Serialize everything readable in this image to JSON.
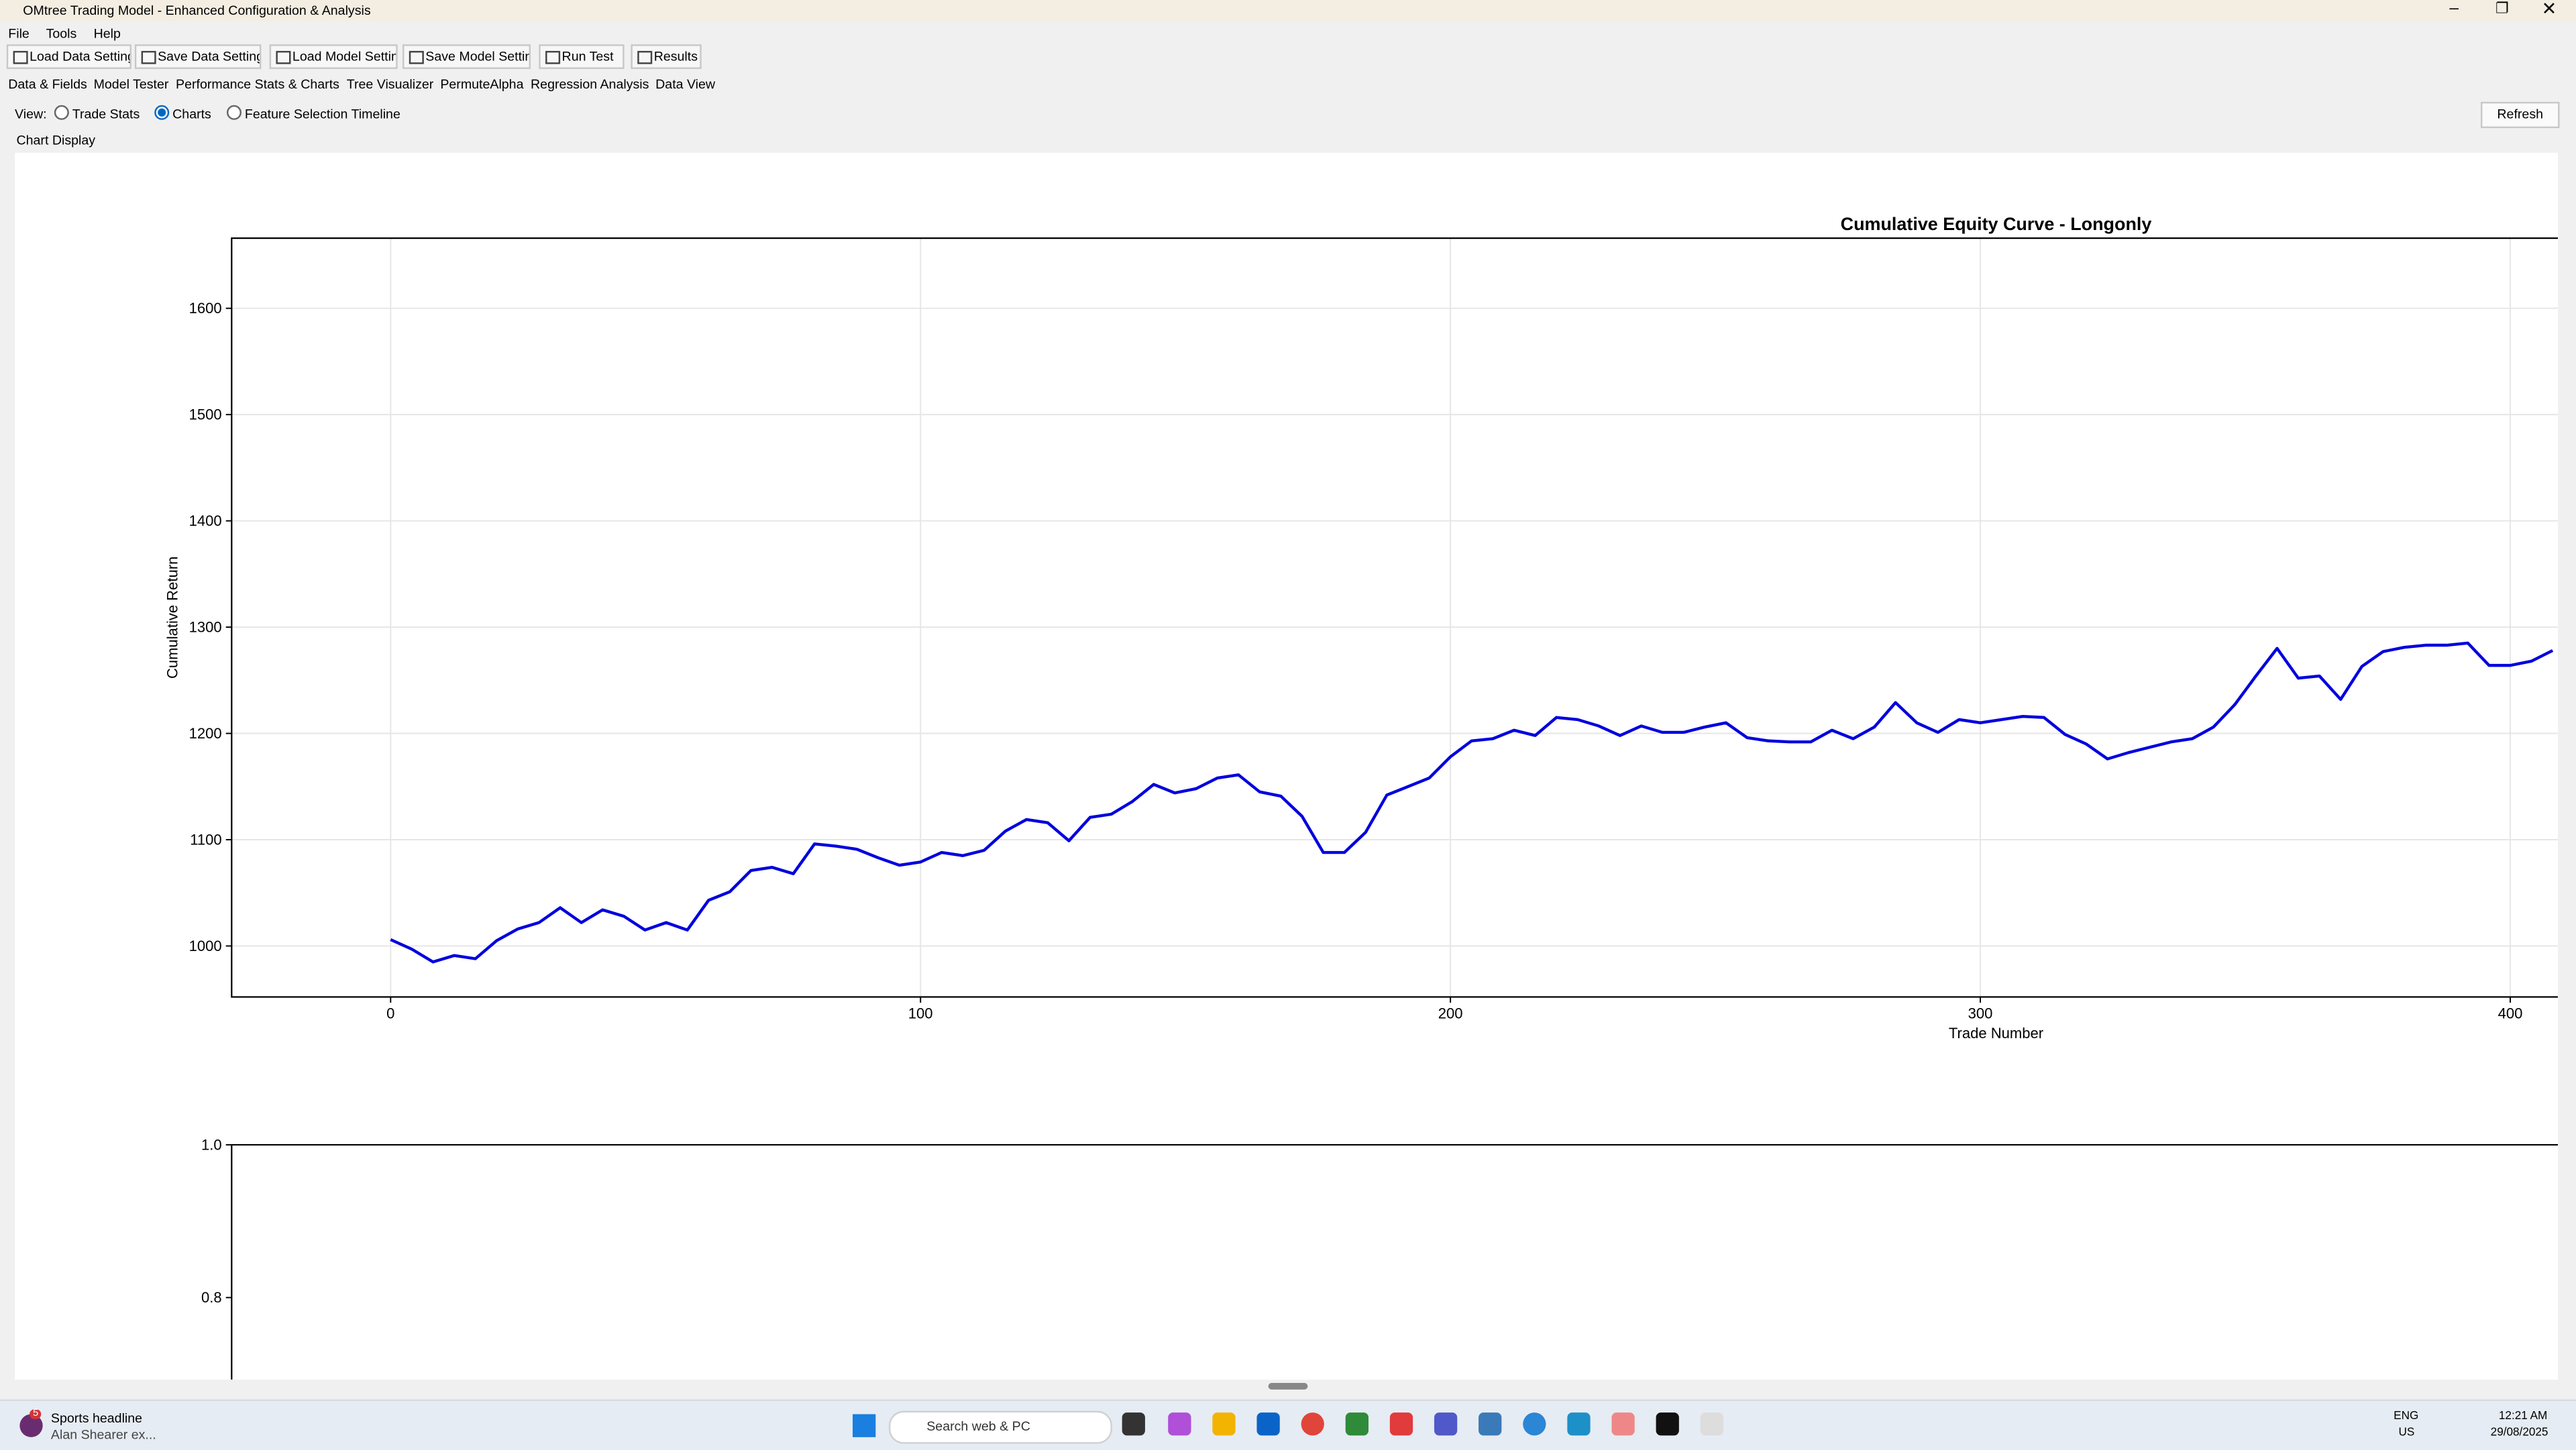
{
  "window": {
    "title": "OMtree Trading Model - Enhanced Configuration & Analysis"
  },
  "menu": [
    "File",
    "Tools",
    "Help"
  ],
  "toolbar": [
    "Load Data Settings",
    "Save Data Settings",
    "Load Model Settings",
    "Save Model Settings",
    "Run Test",
    "Results"
  ],
  "tabs": [
    "Data & Fields",
    "Model Tester",
    "Performance Stats & Charts",
    "Tree Visualizer",
    "PermuteAlpha",
    "Regression Analysis",
    "Data View"
  ],
  "view": {
    "label": "View:",
    "options": [
      "Trade Stats",
      "Charts",
      "Feature Selection Timeline"
    ],
    "selected": 1
  },
  "refresh": "Refresh",
  "panel_label": "Chart Display",
  "chart_data": [
    {
      "type": "line",
      "title": "Cumulative Equity Curve - Longonly",
      "xlabel": "Trade Number",
      "ylabel": "Cumulative Return",
      "x": [
        0,
        4,
        8,
        12,
        16,
        20,
        24,
        28,
        32,
        36,
        40,
        44,
        48,
        52,
        56,
        60,
        64,
        68,
        72,
        76,
        80,
        84,
        88,
        92,
        96,
        100,
        104,
        108,
        112,
        116,
        120,
        124,
        128,
        132,
        136,
        140,
        144,
        148,
        152,
        156,
        160,
        164,
        168,
        172,
        176,
        180,
        184,
        188,
        192,
        196,
        200,
        204,
        208,
        212,
        216,
        220,
        224,
        228,
        232,
        236,
        240,
        244,
        248,
        252,
        256,
        260,
        264,
        268,
        272,
        276,
        280,
        284,
        288,
        292,
        296,
        300,
        304,
        308,
        312,
        316,
        320,
        324,
        328,
        332,
        336,
        340,
        344,
        348,
        352,
        356,
        360,
        364,
        368,
        372,
        376,
        380,
        384,
        388,
        392,
        396,
        400,
        404,
        408
      ],
      "series": [
        {
          "color": "#0000dd",
          "values": [
            1006,
            997,
            985,
            991,
            988,
            1005,
            1016,
            1022,
            1036,
            1022,
            1034,
            1028,
            1015,
            1022,
            1015,
            1043,
            1051,
            1071,
            1074,
            1068,
            1096,
            1094,
            1091,
            1083,
            1076,
            1079,
            1088,
            1085,
            1090,
            1108,
            1119,
            1116,
            1099,
            1121,
            1124,
            1136,
            1152,
            1144,
            1148,
            1158,
            1161,
            1145,
            1141,
            1122,
            1088,
            1088,
            1107,
            1142,
            1150,
            1158,
            1178,
            1193,
            1195,
            1203,
            1198,
            1215,
            1213,
            1207,
            1198,
            1207,
            1201,
            1201,
            1206,
            1210,
            1196,
            1193,
            1192,
            1192,
            1203,
            1195,
            1206,
            1229,
            1210,
            1201,
            1213,
            1210,
            1213,
            1216,
            1215,
            1199,
            1190,
            1176,
            1182,
            1187,
            1192,
            1195,
            1206,
            1227,
            1254,
            1280,
            1252,
            1254,
            1232,
            1263,
            1277,
            1281,
            1283,
            1283,
            1285,
            1264,
            1264,
            1268,
            1278
          ]
        }
      ],
      "xlim": [
        -30,
        409
      ],
      "ylim": [
        952,
        1666
      ],
      "xticks": [
        0,
        100,
        200,
        300,
        400
      ],
      "yticks": [
        1000,
        1100,
        1200,
        1300,
        1400,
        1500,
        1600
      ],
      "grid": true
    },
    {
      "type": "line",
      "ylim": [
        0,
        1
      ],
      "yticks": [
        {
          "value": 1,
          "label": "1.0"
        },
        {
          "value": 0.8,
          "label": "0.8"
        }
      ],
      "grid": false
    }
  ],
  "taskbar": {
    "news_badge": "5",
    "news_title": "Sports headline",
    "news_text": "Alan Shearer ex...",
    "search": "Search web & PC",
    "lang": "ENG",
    "region": "US",
    "time": "12:21 AM",
    "date": "29/08/2025"
  }
}
